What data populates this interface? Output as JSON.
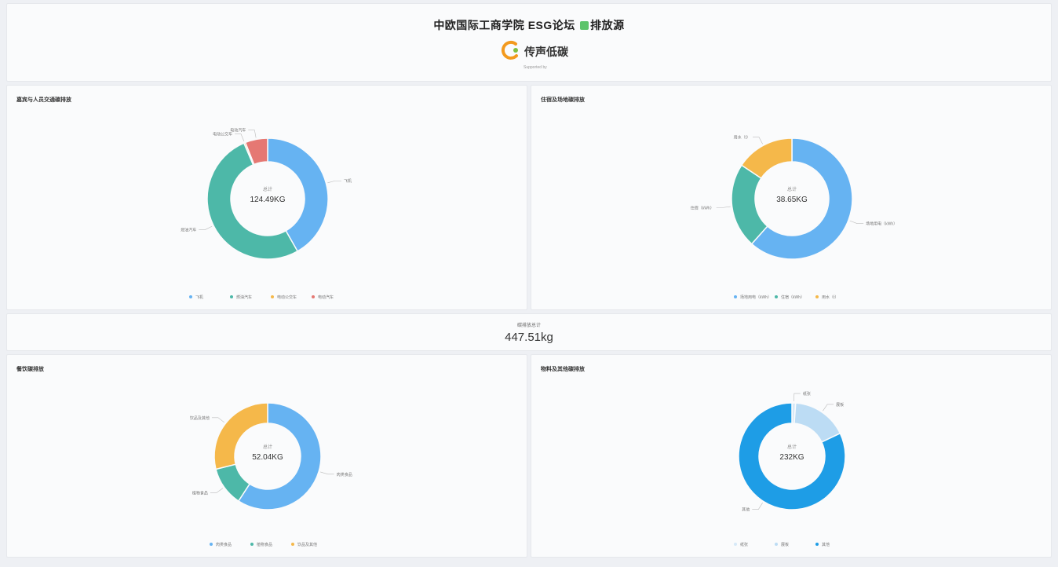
{
  "header": {
    "title_part1": "中欧国际工商学院 ESG论坛",
    "title_part2": "排放源",
    "logo_text": "传声低碳",
    "logo_sub": "Supported by",
    "colors": {
      "logo_orange": "#f39a1e",
      "logo_green": "#7fc040",
      "title_leaf": "#5cc46a"
    }
  },
  "total": {
    "label": "碳排放总计",
    "value": "447.51kg"
  },
  "chart_data": [
    {
      "type": "donut",
      "title": "嘉宾与人员交通碳排放",
      "center_label": "总计",
      "center_value": "124.49KG",
      "slices": [
        {
          "name": "飞机",
          "value": 52.0,
          "color": "#66b3f2"
        },
        {
          "name": "燃油汽车",
          "value": 64.5,
          "color": "#4db8a8"
        },
        {
          "name": "电动公交车",
          "value": 0.5,
          "color": "#f5b84a"
        },
        {
          "name": "电动汽车",
          "value": 7.49,
          "color": "#e57873"
        }
      ],
      "legend": [
        "飞机",
        "燃油汽车",
        "电动公交车",
        "电动汽车"
      ]
    },
    {
      "type": "donut",
      "title": "住宿及场地碳排放",
      "center_label": "总计",
      "center_value": "38.65KG",
      "slices": [
        {
          "name": "场地用电（kWh）",
          "value": 23.8,
          "color": "#66b3f2"
        },
        {
          "name": "住宿（kWh）",
          "value": 8.8,
          "color": "#4db8a8"
        },
        {
          "name": "用水（t）",
          "value": 6.05,
          "color": "#f5b84a"
        }
      ],
      "legend": [
        "场地用电（kWh）",
        "住宿（kWh）",
        "用水（t）"
      ]
    },
    {
      "type": "donut",
      "title": "餐饮碳排放",
      "center_label": "总计",
      "center_value": "52.04KG",
      "slices": [
        {
          "name": "肉类食品",
          "value": 30.8,
          "color": "#66b3f2"
        },
        {
          "name": "植物食品",
          "value": 6.2,
          "color": "#4db8a8"
        },
        {
          "name": "饮品及其他",
          "value": 15.04,
          "color": "#f5b84a"
        }
      ],
      "legend": [
        "肉类食品",
        "植物食品",
        "饮品及其他"
      ]
    },
    {
      "type": "donut",
      "title": "物料及其他碳排放",
      "center_label": "总计",
      "center_value": "232KG",
      "slices": [
        {
          "name": "纸张",
          "value": 2.6,
          "color": "#d6e9f8"
        },
        {
          "name": "展板",
          "value": 39.0,
          "color": "#bcdcf4"
        },
        {
          "name": "其他",
          "value": 190.4,
          "color": "#1e9de6"
        }
      ],
      "legend": [
        "纸张",
        "展板",
        "其他"
      ]
    }
  ]
}
